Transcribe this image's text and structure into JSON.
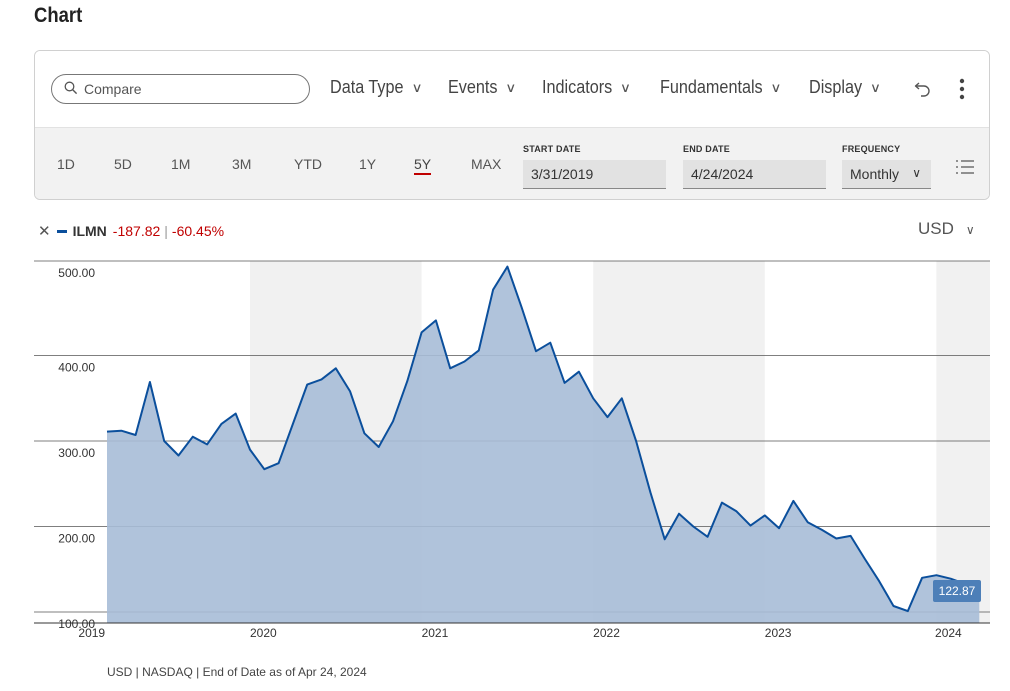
{
  "page": {
    "title": "Chart"
  },
  "toolbar": {
    "compare_placeholder": "Compare",
    "menus": [
      "Data Type",
      "Events",
      "Indicators",
      "Fundamentals",
      "Display"
    ]
  },
  "ranges": [
    "1D",
    "5D",
    "1M",
    "3M",
    "YTD",
    "1Y",
    "5Y",
    "MAX"
  ],
  "active_range": "5Y",
  "dates": {
    "start_label": "START DATE",
    "start_value": "3/31/2019",
    "end_label": "END DATE",
    "end_value": "4/24/2024",
    "freq_label": "FREQUENCY",
    "freq_value": "Monthly"
  },
  "legend": {
    "symbol": "ILMN",
    "change": "-187.82",
    "pct": "-60.45%"
  },
  "currency": "USD",
  "colors": {
    "line": "#0b4f9c",
    "area": "#a7bcd7",
    "band": "#f1f1f1",
    "negative": "#c00000",
    "underline": "#c00000"
  },
  "footnote": "USD | NASDAQ | End of Date as of Apr 24, 2024",
  "chart_data": {
    "type": "area",
    "series": [
      {
        "name": "ILMN",
        "x": [
          "2019-03",
          "2019-04",
          "2019-05",
          "2019-06",
          "2019-07",
          "2019-08",
          "2019-09",
          "2019-10",
          "2019-11",
          "2019-12",
          "2020-01",
          "2020-02",
          "2020-03",
          "2020-04",
          "2020-05",
          "2020-06",
          "2020-07",
          "2020-08",
          "2020-09",
          "2020-10",
          "2020-11",
          "2020-12",
          "2021-01",
          "2021-02",
          "2021-03",
          "2021-04",
          "2021-05",
          "2021-06",
          "2021-07",
          "2021-08",
          "2021-09",
          "2021-10",
          "2021-11",
          "2021-12",
          "2022-01",
          "2022-02",
          "2022-03",
          "2022-04",
          "2022-05",
          "2022-06",
          "2022-07",
          "2022-08",
          "2022-09",
          "2022-10",
          "2022-11",
          "2022-12",
          "2023-01",
          "2023-02",
          "2023-03",
          "2023-04",
          "2023-05",
          "2023-06",
          "2023-07",
          "2023-08",
          "2023-09",
          "2023-10",
          "2023-11",
          "2023-12",
          "2024-01",
          "2024-02",
          "2024-03",
          "2024-04"
        ],
        "values": [
          311,
          312,
          307,
          369,
          300,
          283,
          305,
          296,
          320,
          332,
          290,
          267,
          274,
          320,
          366,
          372,
          385,
          358,
          309,
          293,
          323,
          370,
          427,
          441,
          385,
          393,
          406,
          477,
          504,
          456,
          405,
          415,
          368,
          381,
          350,
          328,
          350,
          300,
          240,
          185,
          215,
          200,
          188,
          228,
          218,
          201,
          213,
          198,
          230,
          205,
          196,
          186,
          189,
          162,
          136,
          107,
          101,
          140,
          143,
          139,
          133,
          122.87
        ]
      }
    ],
    "last_value_label": "122.87",
    "x_tick_labels": [
      "2019",
      "2020",
      "2021",
      "2022",
      "2023",
      "2024"
    ],
    "y_tick_labels": [
      "100.00",
      "200.00",
      "300.00",
      "400.00",
      "500.00"
    ],
    "y_ticks": [
      100,
      200,
      300,
      400,
      500
    ],
    "ylim": [
      100,
      500
    ],
    "grid": true,
    "shaded_years": [
      "2020",
      "2022",
      "2024"
    ]
  }
}
